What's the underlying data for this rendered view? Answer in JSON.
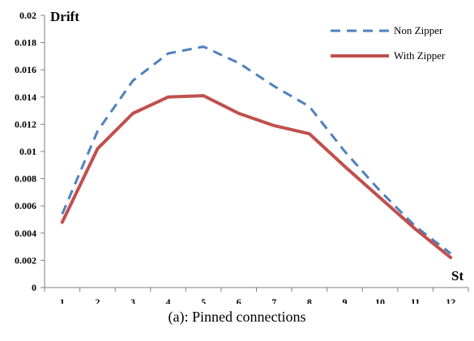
{
  "chart_data": {
    "type": "line",
    "categories": [
      "1",
      "2",
      "3",
      "4",
      "5",
      "6",
      "7",
      "8",
      "9",
      "10",
      "11",
      "12"
    ],
    "series": [
      {
        "name": "Non Zipper",
        "values": [
          0.0054,
          0.0115,
          0.0152,
          0.0172,
          0.0177,
          0.0165,
          0.0148,
          0.0133,
          0.01,
          0.0071,
          0.0045,
          0.0025
        ],
        "color": "#4f81bd",
        "style": "dashed"
      },
      {
        "name": "With Zipper",
        "values": [
          0.0048,
          0.0102,
          0.0128,
          0.014,
          0.0141,
          0.0128,
          0.0119,
          0.0113,
          0.0089,
          0.0066,
          0.0043,
          0.0022
        ],
        "color": "#c0504d",
        "style": "solid"
      }
    ],
    "ylabel": "Drift",
    "xlabel": "St",
    "ylim": [
      0,
      0.02
    ],
    "yticks": [
      "0",
      "0.002",
      "0.004",
      "0.006",
      "0.008",
      "0.01",
      "0.012",
      "0.014",
      "0.016",
      "0.018",
      "0.02"
    ],
    "grid": false,
    "legend": "top-right"
  },
  "caption": "(a): Pinned connections"
}
